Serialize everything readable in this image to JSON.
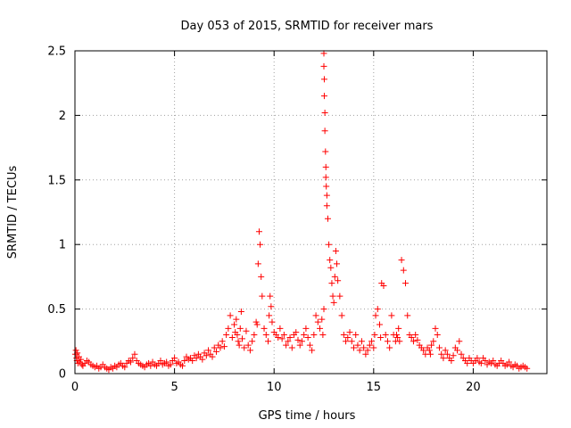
{
  "chart_data": {
    "type": "scatter",
    "title": "Day 053 of 2015, SRMTID for receiver mars",
    "xlabel": "GPS time / hours",
    "ylabel": "SRMTID / TECUs",
    "xlim": [
      0,
      23.7
    ],
    "ylim": [
      0,
      2.5
    ],
    "xticks": [
      0,
      5,
      10,
      15,
      20
    ],
    "yticks": [
      0,
      0.5,
      1,
      1.5,
      2,
      2.5
    ],
    "xtick_labels": [
      "0",
      "5",
      "10",
      "15",
      "20"
    ],
    "ytick_labels": [
      "0",
      "0.5",
      "1",
      "1.5",
      "2",
      "2.5"
    ],
    "grid": true,
    "marker": "plus",
    "series": [
      {
        "name": "SRMTID",
        "color": "#ff0000",
        "x": [
          0.02,
          0.05,
          0.08,
          0.1,
          0.12,
          0.15,
          0.2,
          0.25,
          0.3,
          0.35,
          0.4,
          0.5,
          0.6,
          0.7,
          0.8,
          0.9,
          1.0,
          1.1,
          1.2,
          1.3,
          1.4,
          1.5,
          1.6,
          1.7,
          1.8,
          1.9,
          2.0,
          2.1,
          2.2,
          2.3,
          2.4,
          2.5,
          2.6,
          2.7,
          2.8,
          2.9,
          3.0,
          3.1,
          3.2,
          3.3,
          3.4,
          3.5,
          3.6,
          3.7,
          3.8,
          3.9,
          4.0,
          4.1,
          4.2,
          4.3,
          4.4,
          4.5,
          4.6,
          4.7,
          4.8,
          4.9,
          5.0,
          5.1,
          5.2,
          5.3,
          5.4,
          5.5,
          5.6,
          5.7,
          5.8,
          5.9,
          6.0,
          6.1,
          6.2,
          6.3,
          6.4,
          6.5,
          6.6,
          6.7,
          6.8,
          6.9,
          7.0,
          7.1,
          7.2,
          7.3,
          7.4,
          7.5,
          7.6,
          7.7,
          7.8,
          7.9,
          8.0,
          8.05,
          8.1,
          8.15,
          8.2,
          8.25,
          8.3,
          8.35,
          8.4,
          8.5,
          8.6,
          8.7,
          8.8,
          8.9,
          9.0,
          9.1,
          9.15,
          9.2,
          9.25,
          9.3,
          9.35,
          9.4,
          9.5,
          9.6,
          9.7,
          9.75,
          9.8,
          9.85,
          9.9,
          10.0,
          10.1,
          10.2,
          10.3,
          10.4,
          10.5,
          10.6,
          10.7,
          10.8,
          10.9,
          11.0,
          11.1,
          11.2,
          11.3,
          11.4,
          11.5,
          11.6,
          11.7,
          11.8,
          11.9,
          12.0,
          12.1,
          12.2,
          12.3,
          12.4,
          12.45,
          12.5,
          12.5,
          12.5,
          12.52,
          12.52,
          12.55,
          12.55,
          12.58,
          12.6,
          12.6,
          12.62,
          12.65,
          12.65,
          12.7,
          12.75,
          12.8,
          12.85,
          12.9,
          12.95,
          13.0,
          13.05,
          13.1,
          13.15,
          13.2,
          13.3,
          13.4,
          13.5,
          13.6,
          13.7,
          13.8,
          13.9,
          14.0,
          14.1,
          14.2,
          14.3,
          14.4,
          14.5,
          14.6,
          14.7,
          14.8,
          14.9,
          15.0,
          15.05,
          15.1,
          15.2,
          15.3,
          15.35,
          15.4,
          15.5,
          15.6,
          15.7,
          15.8,
          15.9,
          16.0,
          16.1,
          16.15,
          16.2,
          16.25,
          16.3,
          16.4,
          16.5,
          16.6,
          16.7,
          16.8,
          16.9,
          17.0,
          17.1,
          17.2,
          17.3,
          17.4,
          17.5,
          17.6,
          17.7,
          17.8,
          17.85,
          17.9,
          18.0,
          18.1,
          18.2,
          18.3,
          18.4,
          18.5,
          18.6,
          18.7,
          18.8,
          18.9,
          19.0,
          19.1,
          19.2,
          19.3,
          19.4,
          19.5,
          19.6,
          19.7,
          19.8,
          19.9,
          20.0,
          20.1,
          20.2,
          20.3,
          20.4,
          20.5,
          20.6,
          20.7,
          20.8,
          20.9,
          21.0,
          21.1,
          21.2,
          21.3,
          21.4,
          21.5,
          21.6,
          21.7,
          21.8,
          21.9,
          22.0,
          22.1,
          22.2,
          22.3,
          22.4,
          22.5,
          22.6,
          22.7
        ],
        "y": [
          0.15,
          0.18,
          0.12,
          0.1,
          0.16,
          0.08,
          0.13,
          0.09,
          0.11,
          0.07,
          0.06,
          0.08,
          0.1,
          0.09,
          0.07,
          0.06,
          0.05,
          0.06,
          0.04,
          0.05,
          0.07,
          0.05,
          0.04,
          0.03,
          0.05,
          0.04,
          0.06,
          0.05,
          0.07,
          0.08,
          0.06,
          0.05,
          0.08,
          0.1,
          0.09,
          0.12,
          0.15,
          0.1,
          0.08,
          0.07,
          0.06,
          0.05,
          0.07,
          0.08,
          0.06,
          0.09,
          0.07,
          0.06,
          0.08,
          0.1,
          0.07,
          0.08,
          0.09,
          0.06,
          0.07,
          0.1,
          0.12,
          0.08,
          0.09,
          0.07,
          0.06,
          0.1,
          0.13,
          0.11,
          0.12,
          0.1,
          0.14,
          0.12,
          0.15,
          0.13,
          0.11,
          0.16,
          0.14,
          0.18,
          0.15,
          0.13,
          0.2,
          0.17,
          0.22,
          0.2,
          0.25,
          0.21,
          0.3,
          0.35,
          0.45,
          0.28,
          0.38,
          0.32,
          0.42,
          0.3,
          0.25,
          0.22,
          0.35,
          0.48,
          0.27,
          0.2,
          0.33,
          0.22,
          0.18,
          0.25,
          0.3,
          0.4,
          0.38,
          0.85,
          1.1,
          1.0,
          0.75,
          0.6,
          0.35,
          0.3,
          0.25,
          0.45,
          0.6,
          0.52,
          0.4,
          0.32,
          0.3,
          0.28,
          0.35,
          0.27,
          0.3,
          0.22,
          0.25,
          0.28,
          0.2,
          0.3,
          0.32,
          0.26,
          0.22,
          0.25,
          0.3,
          0.35,
          0.28,
          0.22,
          0.18,
          0.3,
          0.45,
          0.4,
          0.35,
          0.42,
          0.3,
          0.5,
          2.48,
          2.38,
          2.28,
          2.15,
          2.02,
          1.88,
          1.72,
          1.6,
          1.52,
          1.45,
          1.38,
          1.3,
          1.2,
          1.0,
          0.88,
          0.82,
          0.7,
          0.6,
          0.55,
          0.75,
          0.95,
          0.85,
          0.72,
          0.6,
          0.45,
          0.3,
          0.25,
          0.28,
          0.32,
          0.25,
          0.2,
          0.3,
          0.22,
          0.18,
          0.25,
          0.2,
          0.15,
          0.18,
          0.22,
          0.25,
          0.2,
          0.3,
          0.45,
          0.5,
          0.38,
          0.28,
          0.7,
          0.68,
          0.3,
          0.25,
          0.2,
          0.45,
          0.3,
          0.25,
          0.3,
          0.28,
          0.35,
          0.25,
          0.88,
          0.8,
          0.7,
          0.45,
          0.3,
          0.28,
          0.25,
          0.3,
          0.26,
          0.22,
          0.2,
          0.18,
          0.15,
          0.2,
          0.18,
          0.15,
          0.22,
          0.25,
          0.35,
          0.3,
          0.2,
          0.15,
          0.12,
          0.18,
          0.15,
          0.12,
          0.1,
          0.14,
          0.2,
          0.18,
          0.25,
          0.15,
          0.12,
          0.1,
          0.08,
          0.12,
          0.1,
          0.08,
          0.1,
          0.12,
          0.09,
          0.08,
          0.12,
          0.1,
          0.07,
          0.09,
          0.08,
          0.1,
          0.07,
          0.06,
          0.08,
          0.1,
          0.08,
          0.06,
          0.07,
          0.09,
          0.06,
          0.05,
          0.07,
          0.06,
          0.04,
          0.05,
          0.06,
          0.05,
          0.04
        ]
      }
    ]
  }
}
